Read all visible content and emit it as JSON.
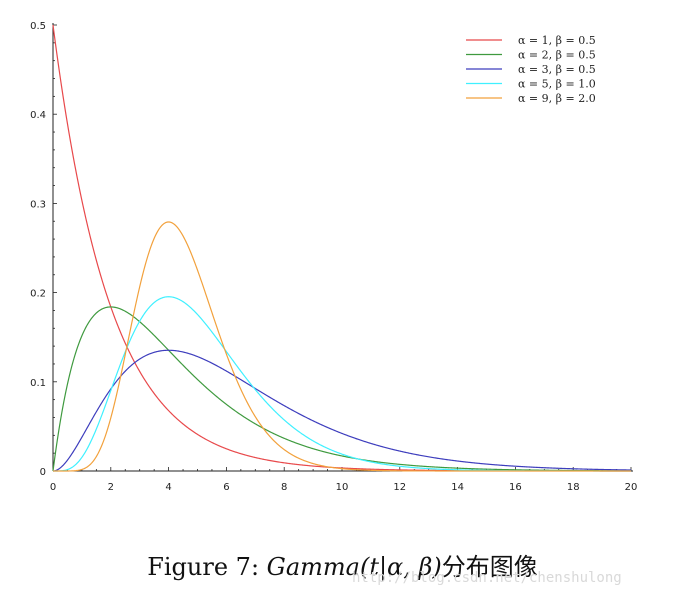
{
  "chart_data": {
    "type": "line",
    "title": "",
    "xlabel": "",
    "ylabel": "",
    "xlim": [
      0,
      20
    ],
    "ylim": [
      0,
      0.5
    ],
    "x_ticks": [
      "0",
      "2",
      "4",
      "6",
      "8",
      "10",
      "12",
      "14",
      "16",
      "18",
      "20"
    ],
    "y_ticks": [
      "0",
      "0.1",
      "0.2",
      "0.3",
      "0.4",
      "0.5"
    ],
    "grid": false,
    "legend_position": "top-right",
    "series": [
      {
        "name": "α = 1,   β = 0.5",
        "alpha": 1,
        "beta": 0.5,
        "color": "#e8494b",
        "x": [
          0,
          1,
          2,
          3,
          4,
          5,
          6,
          8,
          10,
          12,
          14,
          16,
          18,
          20
        ],
        "y": [
          0.5,
          0.303,
          0.184,
          0.112,
          0.068,
          0.041,
          0.025,
          0.009,
          0.003,
          0.001,
          0.0005,
          0.0002,
          0.0001,
          0.0
        ]
      },
      {
        "name": "α = 2,   β = 0.5",
        "alpha": 2,
        "beta": 0.5,
        "color": "#3f9a3f",
        "x": [
          0,
          1,
          2,
          3,
          4,
          5,
          6,
          8,
          10,
          12,
          14,
          16,
          18,
          20
        ],
        "y": [
          0.0,
          0.152,
          0.184,
          0.167,
          0.135,
          0.103,
          0.075,
          0.037,
          0.017,
          0.007,
          0.003,
          0.001,
          0.0005,
          0.0002
        ]
      },
      {
        "name": "α = 3,   β = 0.5",
        "alpha": 3,
        "beta": 0.5,
        "color": "#3d3dbd",
        "x": [
          0,
          1,
          2,
          3,
          4,
          5,
          6,
          8,
          10,
          12,
          14,
          16,
          18,
          20
        ],
        "y": [
          0.0,
          0.038,
          0.092,
          0.126,
          0.135,
          0.128,
          0.112,
          0.073,
          0.042,
          0.022,
          0.011,
          0.005,
          0.002,
          0.001
        ]
      },
      {
        "name": "α = 5,   β = 1.0",
        "alpha": 5,
        "beta": 1.0,
        "color": "#3ff0ff",
        "x": [
          0,
          1,
          2,
          3,
          4,
          5,
          6,
          8,
          10,
          12,
          14,
          16,
          18,
          20
        ],
        "y": [
          0.0,
          0.015,
          0.09,
          0.168,
          0.195,
          0.175,
          0.134,
          0.057,
          0.019,
          0.005,
          0.001,
          0.0003,
          0.0001,
          0.0
        ]
      },
      {
        "name": "α = 9,   β = 2.0",
        "alpha": 9,
        "beta": 2.0,
        "color": "#f2a13c",
        "x": [
          0,
          1,
          2,
          3,
          4,
          5,
          6,
          8,
          10,
          12,
          14,
          16,
          18,
          20
        ],
        "y": [
          0.0,
          0.001,
          0.036,
          0.174,
          0.279,
          0.25,
          0.161,
          0.04,
          0.006,
          0.001,
          0.0001,
          0.0,
          0.0,
          0.0
        ]
      }
    ]
  },
  "caption": {
    "prefix": "Figure 7: ",
    "math": "Gamma(t|α, β)",
    "suffix": "分布图像"
  },
  "watermark": "http://blog.csdn.net/chenshulong"
}
